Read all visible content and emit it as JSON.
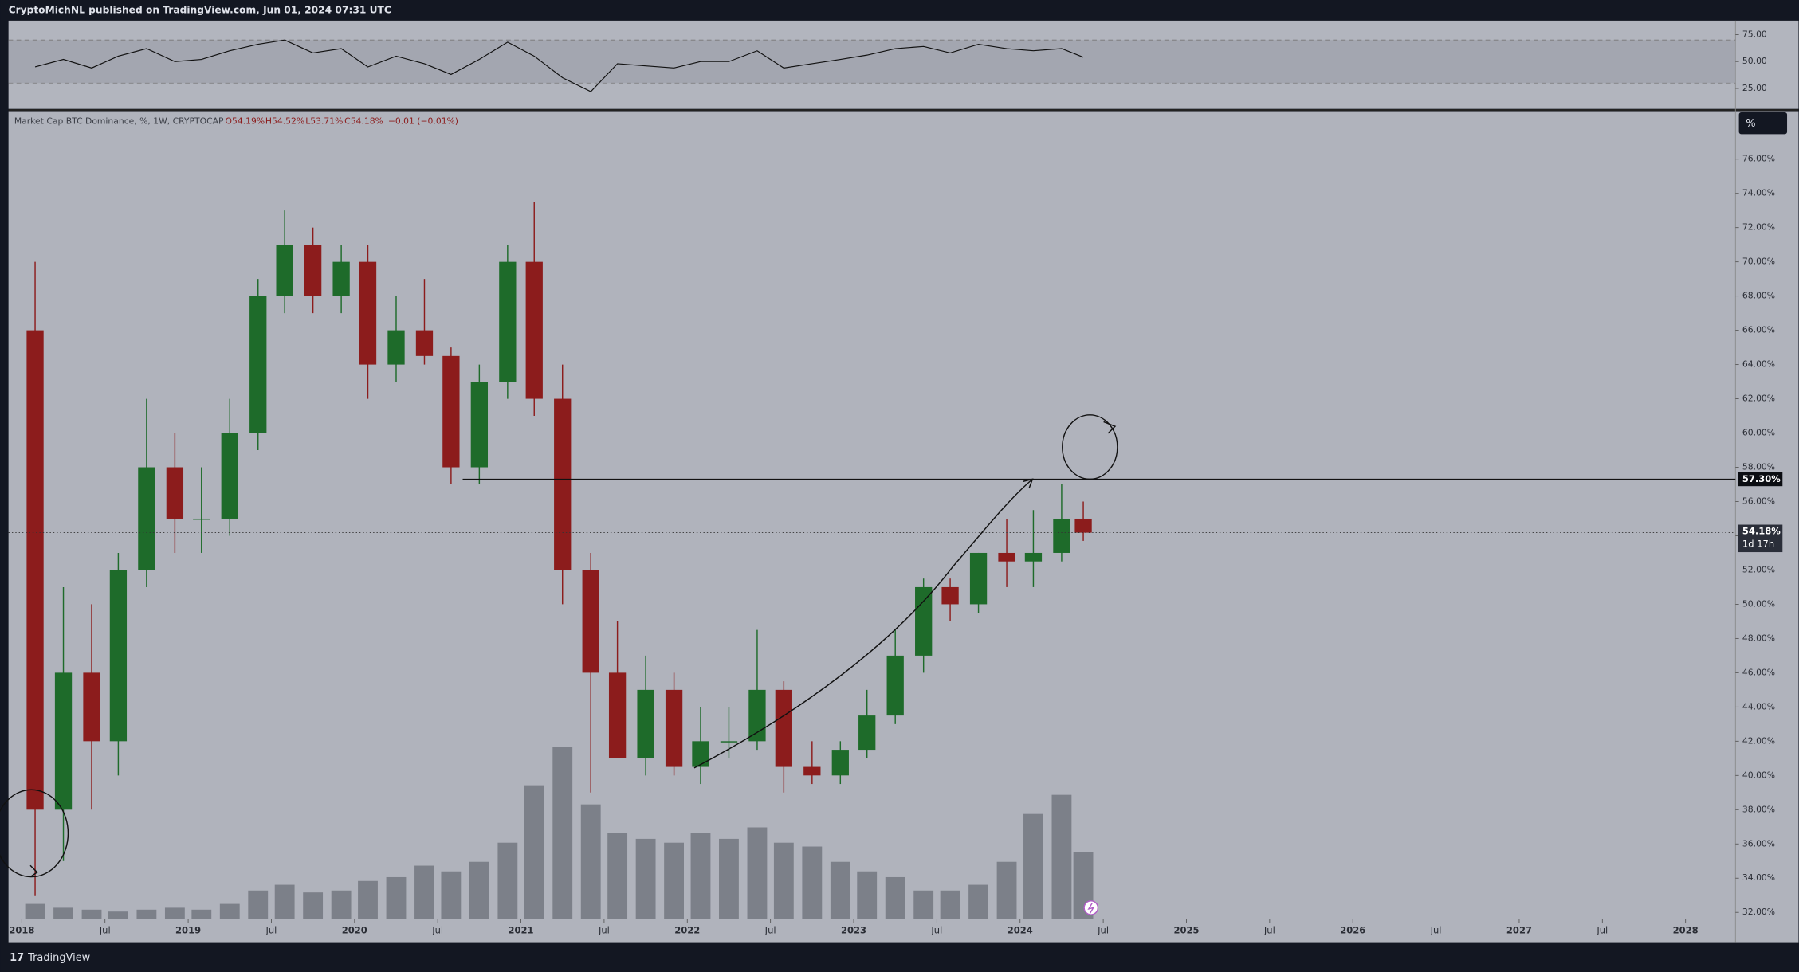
{
  "page": {
    "header": "CryptoMichNL published on TradingView.com, Jun 01, 2024 07:31 UTC",
    "footer": "TradingView",
    "scale_button": "%"
  },
  "chart_data": {
    "type": "candlestick",
    "legend": {
      "symbol": "Market Cap BTC Dominance, %, 1W, CRYPTOCAP",
      "open": "O54.19%",
      "high": "H54.52%",
      "low": "L53.71%",
      "close": "C54.18%",
      "change": "−0.01 (−0.01%)"
    },
    "up_color": "#1e6b2a",
    "down_color": "#8c1c1c",
    "x": [
      2018.08,
      2018.25,
      2018.42,
      2018.58,
      2018.75,
      2018.92,
      2019.08,
      2019.25,
      2019.42,
      2019.58,
      2019.75,
      2019.92,
      2020.08,
      2020.25,
      2020.42,
      2020.58,
      2020.75,
      2020.92,
      2021.08,
      2021.25,
      2021.42,
      2021.58,
      2021.75,
      2021.92,
      2022.08,
      2022.25,
      2022.42,
      2022.58,
      2022.75,
      2022.92,
      2023.08,
      2023.25,
      2023.42,
      2023.58,
      2023.75,
      2023.92,
      2024.08,
      2024.25,
      2024.38
    ],
    "open": [
      66,
      38,
      46,
      42,
      52,
      58,
      55,
      55,
      60,
      68,
      71,
      68,
      70,
      64,
      66,
      64.5,
      58,
      63,
      70,
      62,
      52,
      46,
      41,
      45,
      40.5,
      42,
      42,
      45,
      40.5,
      40,
      41.5,
      43.5,
      47,
      51,
      50,
      53,
      52.5,
      53,
      55
    ],
    "high": [
      70,
      51,
      50,
      53,
      62,
      60,
      58,
      62,
      69,
      73,
      72,
      71,
      71,
      68,
      69,
      65,
      64,
      71,
      73.5,
      64,
      53,
      49,
      47,
      46,
      44,
      44,
      48.5,
      45.5,
      42,
      42,
      45,
      48.5,
      51.5,
      51.5,
      53,
      55,
      55.5,
      57,
      56
    ],
    "low": [
      33,
      35,
      38,
      40,
      51,
      53,
      53,
      54,
      59,
      67,
      67,
      67,
      62,
      63,
      64,
      57,
      57,
      62,
      61,
      50,
      39,
      41,
      40,
      40,
      39.5,
      41,
      41.5,
      39,
      39.5,
      39.5,
      41,
      43,
      46,
      49,
      49.5,
      51,
      51,
      52.5,
      53.7
    ],
    "close": [
      38,
      46,
      42,
      52,
      58,
      55,
      55,
      60,
      68,
      71,
      68,
      70,
      64,
      66,
      64.5,
      58,
      63,
      70,
      62,
      52,
      46,
      41,
      45,
      40.5,
      42,
      42,
      45,
      40.5,
      40,
      41.5,
      43.5,
      47,
      51,
      50,
      53,
      52.5,
      53,
      55,
      54.18
    ],
    "volume": {
      "color": "#6f737c",
      "values": [
        8,
        6,
        5,
        4,
        5,
        6,
        5,
        8,
        15,
        18,
        14,
        15,
        20,
        22,
        28,
        25,
        30,
        40,
        70,
        90,
        60,
        45,
        42,
        40,
        45,
        42,
        48,
        40,
        38,
        30,
        25,
        22,
        15,
        15,
        18,
        30,
        55,
        65,
        35
      ],
      "ylim": [
        0,
        100
      ]
    },
    "xlim": [
      2017.92,
      2028.3
    ],
    "xticks": [
      2018,
      {
        "value": 2018.5,
        "label": "Jul"
      },
      2019,
      {
        "value": 2019.5,
        "label": "Jul"
      },
      2020,
      {
        "value": 2020.5,
        "label": "Jul"
      },
      2021,
      {
        "value": 2021.5,
        "label": "Jul"
      },
      2022,
      {
        "value": 2022.5,
        "label": "Jul"
      },
      2023,
      {
        "value": 2023.5,
        "label": "Jul"
      },
      2024,
      {
        "value": 2024.5,
        "label": "Jul"
      },
      2025,
      {
        "value": 2025.5,
        "label": "Jul"
      },
      2026,
      {
        "value": 2026.5,
        "label": "Jul"
      },
      2027,
      {
        "value": 2027.5,
        "label": "Jul"
      },
      2028
    ],
    "ylim": [
      31.6,
      78.8
    ],
    "yticks": [
      {
        "value": 32,
        "label": "32.00%"
      },
      {
        "value": 34,
        "label": "34.00%"
      },
      {
        "value": 36,
        "label": "36.00%"
      },
      {
        "value": 38,
        "label": "38.00%"
      },
      {
        "value": 40,
        "label": "40.00%"
      },
      {
        "value": 42,
        "label": "42.00%"
      },
      {
        "value": 44,
        "label": "44.00%"
      },
      {
        "value": 46,
        "label": "46.00%"
      },
      {
        "value": 48,
        "label": "48.00%"
      },
      {
        "value": 50,
        "label": "50.00%"
      },
      {
        "value": 52,
        "label": "52.00%"
      },
      {
        "value": 54,
        "label": "54.00%"
      },
      {
        "value": 56,
        "label": "56.00%"
      },
      {
        "value": 58,
        "label": "58.00%"
      },
      {
        "value": 60,
        "label": "60.00%"
      },
      {
        "value": 62,
        "label": "62.00%"
      },
      {
        "value": 64,
        "label": "64.00%"
      },
      {
        "value": 66,
        "label": "66.00%"
      },
      {
        "value": 68,
        "label": "68.00%"
      },
      {
        "value": 70,
        "label": "70.00%"
      },
      {
        "value": 72,
        "label": "72.00%"
      },
      {
        "value": 74,
        "label": "74.00%"
      },
      {
        "value": 76,
        "label": "76.00%"
      }
    ],
    "hline": {
      "value": 57.3,
      "label": "57.30%",
      "start": 2020.65
    },
    "last": {
      "value": 54.18,
      "label": "54.18%",
      "countdown": "1d 17h"
    },
    "rsi": {
      "color": "#111111",
      "values": [
        45,
        52,
        44,
        55,
        62,
        50,
        52,
        60,
        66,
        70,
        58,
        62,
        45,
        55,
        48,
        38,
        52,
        68,
        55,
        35,
        22,
        48,
        46,
        44,
        50,
        50,
        60,
        44,
        48,
        52,
        56,
        62,
        64,
        58,
        66,
        62,
        60,
        62,
        54
      ],
      "ylim": [
        6,
        88
      ],
      "yticks": [
        {
          "value": 25,
          "label": "25.00"
        },
        {
          "value": 50,
          "label": "50.00"
        },
        {
          "value": 75,
          "label": "75.00"
        }
      ],
      "band": [
        30,
        70
      ]
    }
  }
}
